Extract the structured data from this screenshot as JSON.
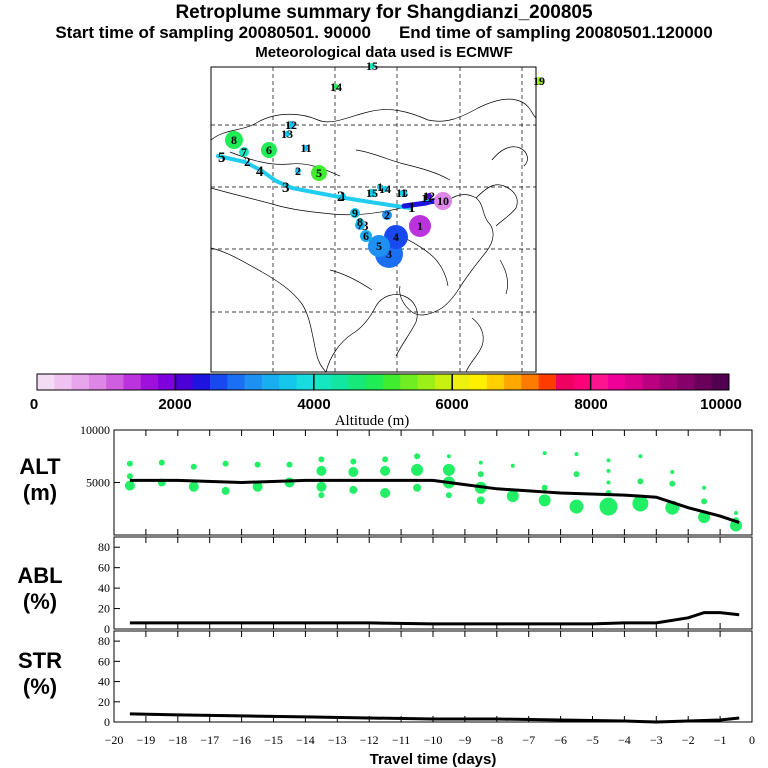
{
  "header": {
    "title": "Retroplume summary for Shangdianzi_200805",
    "start_text": "Start time of sampling 20080501. 90000",
    "end_text": "End time of sampling 20080501.120000",
    "met_text": "Meteorological data used is ECMWF"
  },
  "colors": {
    "track": "#22ccee",
    "alt_points": "#22ee66",
    "line": "#000000"
  },
  "colorbar": {
    "title": "Altitude (m)",
    "range": [
      0,
      10000
    ],
    "tick_labels": [
      "0",
      "2000",
      "4000",
      "6000",
      "8000",
      "10000"
    ],
    "bins": [
      "#f5dcf5",
      "#efc2f0",
      "#e7a6ec",
      "#dd86e6",
      "#cf5fe0",
      "#bb33dd",
      "#a010dd",
      "#7d00dd",
      "#4b00d8",
      "#1e14e0",
      "#1748f0",
      "#1b6ff2",
      "#1e90f2",
      "#18aef0",
      "#16c7ec",
      "#18dde0",
      "#14e8c0",
      "#12e6a0",
      "#16e87a",
      "#20ec55",
      "#40ec30",
      "#70ee22",
      "#9cf018",
      "#c8f010",
      "#eef010",
      "#fff000",
      "#ffcf00",
      "#ffa800",
      "#ff7a00",
      "#ff3c00",
      "#f00060",
      "#ff0078",
      "#ff1490",
      "#f00098",
      "#d8008c",
      "#bb0080",
      "#a00076",
      "#850068",
      "#6a005a",
      "#520050"
    ]
  },
  "map": {
    "markers": [
      {
        "label": "1",
        "color": "#bb33dd",
        "size": 11
      },
      {
        "label": "2",
        "color": "#1e90f2",
        "size": 5
      },
      {
        "label": "3",
        "color": "#1b6ff2",
        "size": 14
      },
      {
        "label": "4",
        "color": "#1748f0",
        "size": 12
      },
      {
        "label": "5",
        "color": "#1e90f2",
        "size": 11
      },
      {
        "label": "6",
        "color": "#18aef0",
        "size": 6
      },
      {
        "label": "7",
        "color": "#18aef0",
        "size": 5
      },
      {
        "label": "8",
        "color": "#16c7ec",
        "size": 4
      },
      {
        "label": "9",
        "color": "#16c7ec",
        "size": 5
      },
      {
        "label": "10",
        "color": "#dd86e6",
        "size": 9
      },
      {
        "label": "11",
        "color": "#16c7ec",
        "size": 3
      },
      {
        "label": "12",
        "color": "#4b00d8",
        "size": 3
      },
      {
        "label": "13",
        "color": "#16c7ec",
        "size": 3
      },
      {
        "label": "14",
        "color": "#16c7ec",
        "size": 3
      },
      {
        "label": "15",
        "color": "#16c7ec",
        "size": 4
      },
      {
        "label": "1",
        "color": "#16c7ec",
        "size": 3
      },
      {
        "label": "1",
        "color": "#16c7ec",
        "size": 3
      },
      {
        "label": "1",
        "color": "#16c7ec",
        "size": 3
      },
      {
        "label": "5",
        "color": "#40ec30",
        "size": 8
      },
      {
        "label": "2",
        "color": "#16c7ec",
        "size": 3
      },
      {
        "label": "6",
        "color": "#20ec55",
        "size": 8
      },
      {
        "label": "7",
        "color": "#14e8c0",
        "size": 5
      },
      {
        "label": "8",
        "color": "#20ec55",
        "size": 9
      },
      {
        "label": "11",
        "color": "#16c7ec",
        "size": 3
      },
      {
        "label": "12",
        "color": "#16c7ec",
        "size": 4
      },
      {
        "label": "13",
        "color": "#16c7ec",
        "size": 3
      },
      {
        "label": "14",
        "color": "#20ec55",
        "size": 3
      },
      {
        "label": "15",
        "color": "#14e8c0",
        "size": 3
      },
      {
        "label": "19",
        "color": "#9cf018",
        "size": 4
      }
    ],
    "track_labels": [
      "5",
      "4",
      "3",
      "2",
      "1"
    ],
    "extra_labels": [
      "2",
      "3"
    ]
  },
  "chart_data": [
    {
      "type": "scatter+line",
      "panel": "ALT",
      "ylabel": "ALT",
      "yunit": "(m)",
      "ylim": [
        0,
        10000
      ],
      "yticks": [
        5000,
        10000
      ],
      "xlim": [
        -20,
        0
      ],
      "line_x": [
        -19.5,
        -18,
        -16,
        -14,
        -12,
        -10,
        -9,
        -8,
        -6,
        -4,
        -3,
        -2,
        -1,
        -0.4
      ],
      "line_y": [
        5200,
        5200,
        5000,
        5200,
        5200,
        5200,
        4800,
        4400,
        4000,
        3800,
        3600,
        2600,
        1800,
        1200
      ],
      "points": [
        {
          "x": -19.5,
          "y": 6800,
          "r": 3
        },
        {
          "x": -19.5,
          "y": 5600,
          "r": 3
        },
        {
          "x": -19.5,
          "y": 4700,
          "r": 5
        },
        {
          "x": -18.5,
          "y": 6900,
          "r": 3
        },
        {
          "x": -18.5,
          "y": 5000,
          "r": 4
        },
        {
          "x": -17.5,
          "y": 6500,
          "r": 3
        },
        {
          "x": -17.5,
          "y": 4600,
          "r": 5
        },
        {
          "x": -16.5,
          "y": 6800,
          "r": 3
        },
        {
          "x": -16.5,
          "y": 4200,
          "r": 4
        },
        {
          "x": -15.5,
          "y": 6700,
          "r": 3
        },
        {
          "x": -15.5,
          "y": 4600,
          "r": 5
        },
        {
          "x": -14.5,
          "y": 6700,
          "r": 3
        },
        {
          "x": -14.5,
          "y": 5000,
          "r": 5
        },
        {
          "x": -13.5,
          "y": 6100,
          "r": 5
        },
        {
          "x": -13.5,
          "y": 7200,
          "r": 3
        },
        {
          "x": -13.5,
          "y": 4600,
          "r": 5
        },
        {
          "x": -13.5,
          "y": 3800,
          "r": 3
        },
        {
          "x": -12.5,
          "y": 7000,
          "r": 3
        },
        {
          "x": -12.5,
          "y": 6000,
          "r": 5
        },
        {
          "x": -12.5,
          "y": 4300,
          "r": 4
        },
        {
          "x": -11.5,
          "y": 7200,
          "r": 3
        },
        {
          "x": -11.5,
          "y": 6100,
          "r": 5
        },
        {
          "x": -11.5,
          "y": 4000,
          "r": 5
        },
        {
          "x": -10.5,
          "y": 7500,
          "r": 3
        },
        {
          "x": -10.5,
          "y": 6200,
          "r": 6
        },
        {
          "x": -10.5,
          "y": 4500,
          "r": 4
        },
        {
          "x": -9.5,
          "y": 7500,
          "r": 2
        },
        {
          "x": -9.5,
          "y": 6200,
          "r": 6
        },
        {
          "x": -9.5,
          "y": 5000,
          "r": 6
        },
        {
          "x": -9.5,
          "y": 3800,
          "r": 3
        },
        {
          "x": -8.5,
          "y": 6900,
          "r": 2
        },
        {
          "x": -8.5,
          "y": 5800,
          "r": 3
        },
        {
          "x": -8.5,
          "y": 4500,
          "r": 6
        },
        {
          "x": -8.5,
          "y": 3300,
          "r": 4
        },
        {
          "x": -7.5,
          "y": 6600,
          "r": 2
        },
        {
          "x": -7.5,
          "y": 3700,
          "r": 6
        },
        {
          "x": -6.5,
          "y": 7800,
          "r": 2
        },
        {
          "x": -6.5,
          "y": 4500,
          "r": 3
        },
        {
          "x": -6.5,
          "y": 3300,
          "r": 6
        },
        {
          "x": -5.5,
          "y": 7700,
          "r": 2
        },
        {
          "x": -5.5,
          "y": 5800,
          "r": 3
        },
        {
          "x": -5.5,
          "y": 2700,
          "r": 7
        },
        {
          "x": -4.5,
          "y": 7100,
          "r": 2
        },
        {
          "x": -4.5,
          "y": 6100,
          "r": 2
        },
        {
          "x": -4.5,
          "y": 5000,
          "r": 2
        },
        {
          "x": -4.5,
          "y": 4000,
          "r": 3
        },
        {
          "x": -4.5,
          "y": 2700,
          "r": 9
        },
        {
          "x": -3.5,
          "y": 7500,
          "r": 2
        },
        {
          "x": -3.5,
          "y": 5100,
          "r": 3
        },
        {
          "x": -3.5,
          "y": 3000,
          "r": 8
        },
        {
          "x": -2.5,
          "y": 6000,
          "r": 2
        },
        {
          "x": -2.5,
          "y": 4900,
          "r": 3
        },
        {
          "x": -2.5,
          "y": 2600,
          "r": 7
        },
        {
          "x": -1.5,
          "y": 4500,
          "r": 2
        },
        {
          "x": -1.5,
          "y": 3200,
          "r": 3
        },
        {
          "x": -1.5,
          "y": 1700,
          "r": 6
        },
        {
          "x": -0.5,
          "y": 2100,
          "r": 2
        },
        {
          "x": -0.5,
          "y": 1400,
          "r": 3
        },
        {
          "x": -0.5,
          "y": 900,
          "r": 6
        }
      ]
    },
    {
      "type": "line",
      "panel": "ABL",
      "ylabel": "ABL",
      "yunit": "(%)",
      "ylim": [
        0,
        90
      ],
      "yticks": [
        0,
        20,
        40,
        60,
        80
      ],
      "xlim": [
        -20,
        0
      ],
      "x": [
        -19.5,
        -18,
        -16,
        -14,
        -12,
        -10,
        -8,
        -6,
        -5,
        -4,
        -3,
        -2,
        -1.5,
        -1,
        -0.4
      ],
      "y": [
        6,
        6,
        6,
        6,
        6,
        5,
        5,
        5,
        5,
        6,
        6,
        11,
        16,
        16,
        14
      ]
    },
    {
      "type": "line",
      "panel": "STR",
      "ylabel": "STR",
      "yunit": "(%)",
      "ylim": [
        0,
        90
      ],
      "yticks": [
        0,
        20,
        40,
        60,
        80
      ],
      "xlim": [
        -20,
        0
      ],
      "xticks": [
        -20,
        -19,
        -18,
        -17,
        -16,
        -15,
        -14,
        -13,
        -12,
        -11,
        -10,
        -9,
        -8,
        -7,
        -6,
        -5,
        -4,
        -3,
        -2,
        -1,
        0
      ],
      "xlabel": "Travel time (days)",
      "x": [
        -19.5,
        -18,
        -16,
        -14,
        -12,
        -10,
        -8,
        -6,
        -4,
        -3,
        -2,
        -1,
        -0.4
      ],
      "y": [
        8,
        7,
        6,
        5,
        4,
        3,
        3,
        2,
        1,
        0,
        1,
        2,
        4
      ]
    }
  ]
}
